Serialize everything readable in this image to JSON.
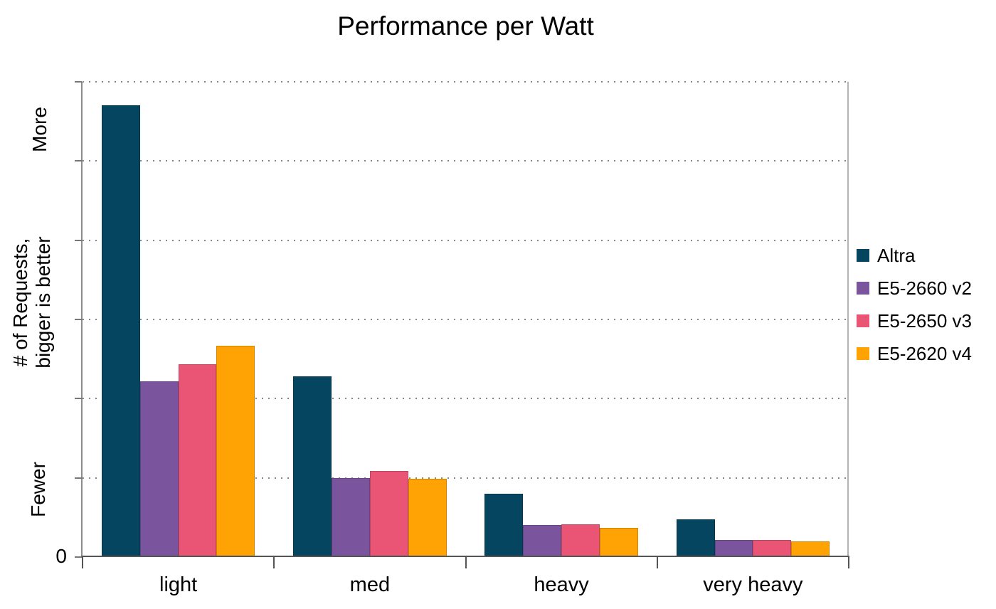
{
  "title": "Performance per Watt",
  "chart_data": {
    "type": "bar",
    "title": "Performance per Watt",
    "categories": [
      "light",
      "med",
      "heavy",
      "very heavy"
    ],
    "series": [
      {
        "name": "Altra",
        "color": "#05455f",
        "values": [
          5.7,
          2.28,
          0.8,
          0.48
        ]
      },
      {
        "name": "E5-2660 v2",
        "color": "#7a559e",
        "values": [
          2.22,
          1.0,
          0.4,
          0.22
        ]
      },
      {
        "name": "E5-2650 v3",
        "color": "#ea5575",
        "values": [
          2.43,
          1.09,
          0.41,
          0.22
        ]
      },
      {
        "name": "E5-2620 v4",
        "color": "#fea303",
        "values": [
          2.67,
          0.99,
          0.37,
          0.2
        ]
      }
    ],
    "xlabel": "",
    "ylabel": "# of Requests,\nbigger is better",
    "y_top_label": "More",
    "y_bottom_label": "Fewer",
    "y_zero_label": "0",
    "ylim": [
      0,
      6
    ],
    "y_gridline_step": 1,
    "grid": "horizontal dotted",
    "legend_position": "right",
    "colors": {
      "background": "#ffffff",
      "text": "#000000",
      "grid": "#878787",
      "y_axis": "#8c8c8c",
      "x_axis": "#555555",
      "plot_right_border": "#b3b3b3"
    }
  }
}
